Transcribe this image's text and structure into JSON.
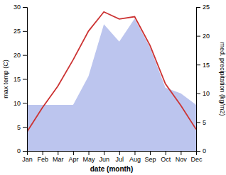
{
  "chart_data": {
    "type": "line",
    "xlabel": "date (month)",
    "ylabel": "max temp (C)",
    "y2label": "med. precipitation (kg/m2)",
    "categories": [
      "Jan",
      "Feb",
      "Mar",
      "Apr",
      "May",
      "Jun",
      "Jul",
      "Aug",
      "Sep",
      "Oct",
      "Nov",
      "Dec"
    ],
    "series": [
      {
        "type": "area",
        "axis": "y2",
        "color": "#bcc5ee",
        "values": [
          8.0,
          8.0,
          8.0,
          8.0,
          13.0,
          22.0,
          19.0,
          23.0,
          18.0,
          11.0,
          10.0,
          8.0
        ]
      },
      {
        "type": "line",
        "color": "#cc3333",
        "values": [
          4.0,
          9.0,
          13.5,
          19.0,
          25.0,
          29.0,
          27.5,
          28.0,
          22.0,
          14.0,
          9.5,
          4.5
        ]
      }
    ],
    "ylim": [
      0,
      30
    ],
    "yticks": [
      0,
      5,
      10,
      15,
      20,
      25,
      30
    ],
    "y2lim": [
      0,
      25
    ],
    "y2ticks": [
      0,
      5,
      10,
      15,
      20,
      25
    ]
  }
}
